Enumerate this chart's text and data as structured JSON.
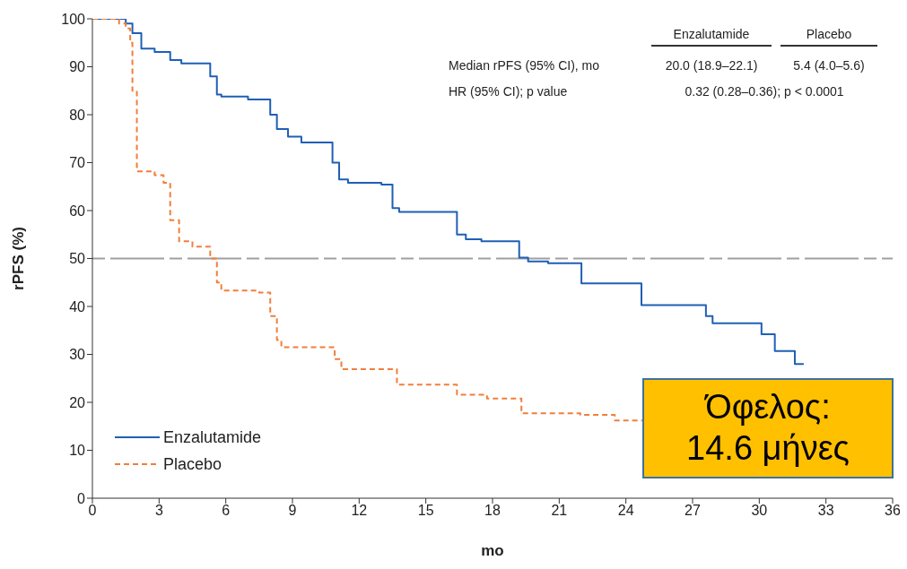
{
  "chart_data": {
    "type": "step",
    "xlabel": "mo",
    "ylabel": "rPFS (%)",
    "xlim": [
      0,
      36
    ],
    "xticks": [
      0,
      3,
      6,
      9,
      12,
      15,
      18,
      21,
      24,
      27,
      30,
      33,
      36
    ],
    "ylim": [
      0,
      100
    ],
    "yticks": [
      0,
      10,
      20,
      30,
      40,
      50,
      60,
      70,
      80,
      90,
      100
    ],
    "grid": false,
    "legend": "bottom left",
    "marker": "none",
    "series": [
      {
        "name": "Enzalutamide",
        "color": "#1f5fb5",
        "line_style": "solid",
        "x": [
          0,
          1.5,
          1.8,
          2.2,
          2.8,
          3.5,
          4.0,
          5.3,
          5.6,
          5.8,
          7.0,
          8.0,
          8.3,
          8.8,
          9.4,
          10.8,
          11.1,
          11.5,
          13.0,
          13.5,
          13.8,
          16.4,
          16.8,
          17.5,
          19.2,
          19.6,
          20.5,
          22.0,
          24.7,
          27.6,
          27.9,
          30.1,
          30.7,
          31.6,
          32.0
        ],
        "values": [
          100,
          99,
          97,
          93.8,
          93.1,
          91.4,
          90.7,
          88,
          84.2,
          83.8,
          83.2,
          80,
          77,
          75.4,
          74.2,
          70,
          66.5,
          65.8,
          65.4,
          60.5,
          59.7,
          55,
          54,
          53.6,
          50.2,
          49.4,
          49,
          44.8,
          40.3,
          38,
          36.5,
          34.2,
          30.7,
          28,
          28
        ]
      },
      {
        "name": "Placebo",
        "color": "#f07f3c",
        "line_style": "dashed",
        "x": [
          0,
          1.2,
          1.5,
          1.7,
          1.8,
          2.0,
          2.8,
          3.2,
          3.5,
          3.9,
          4.5,
          5.3,
          5.6,
          5.8,
          7.5,
          8.0,
          8.3,
          8.5,
          10.9,
          11.2,
          13.7,
          16.4,
          17.75,
          19.3,
          21.95,
          23.5,
          24.8
        ],
        "values": [
          100,
          99,
          98,
          95,
          85,
          68.2,
          67.4,
          65.8,
          58,
          53.6,
          52.5,
          50,
          45,
          43.3,
          42.9,
          38,
          33,
          31.5,
          29,
          26.9,
          23.7,
          21.6,
          20.8,
          17.7,
          17.4,
          16.2,
          16.2
        ]
      }
    ],
    "ref_lines": [
      {
        "axis": "y",
        "value": 50,
        "color": "#a0a0a0",
        "line_style": "dashed"
      }
    ],
    "annotations": [
      "Enzalutamide",
      "Placebo",
      "Median rPFS (95% CI), mo",
      "20.0 (18.9–22.1)",
      "5.4 (4.0–5.6)",
      "HR (95% CI); p value",
      "0.32 (0.28–0.36); p < 0.0001",
      "Όφελος: 14.6 μήνες"
    ]
  }
}
